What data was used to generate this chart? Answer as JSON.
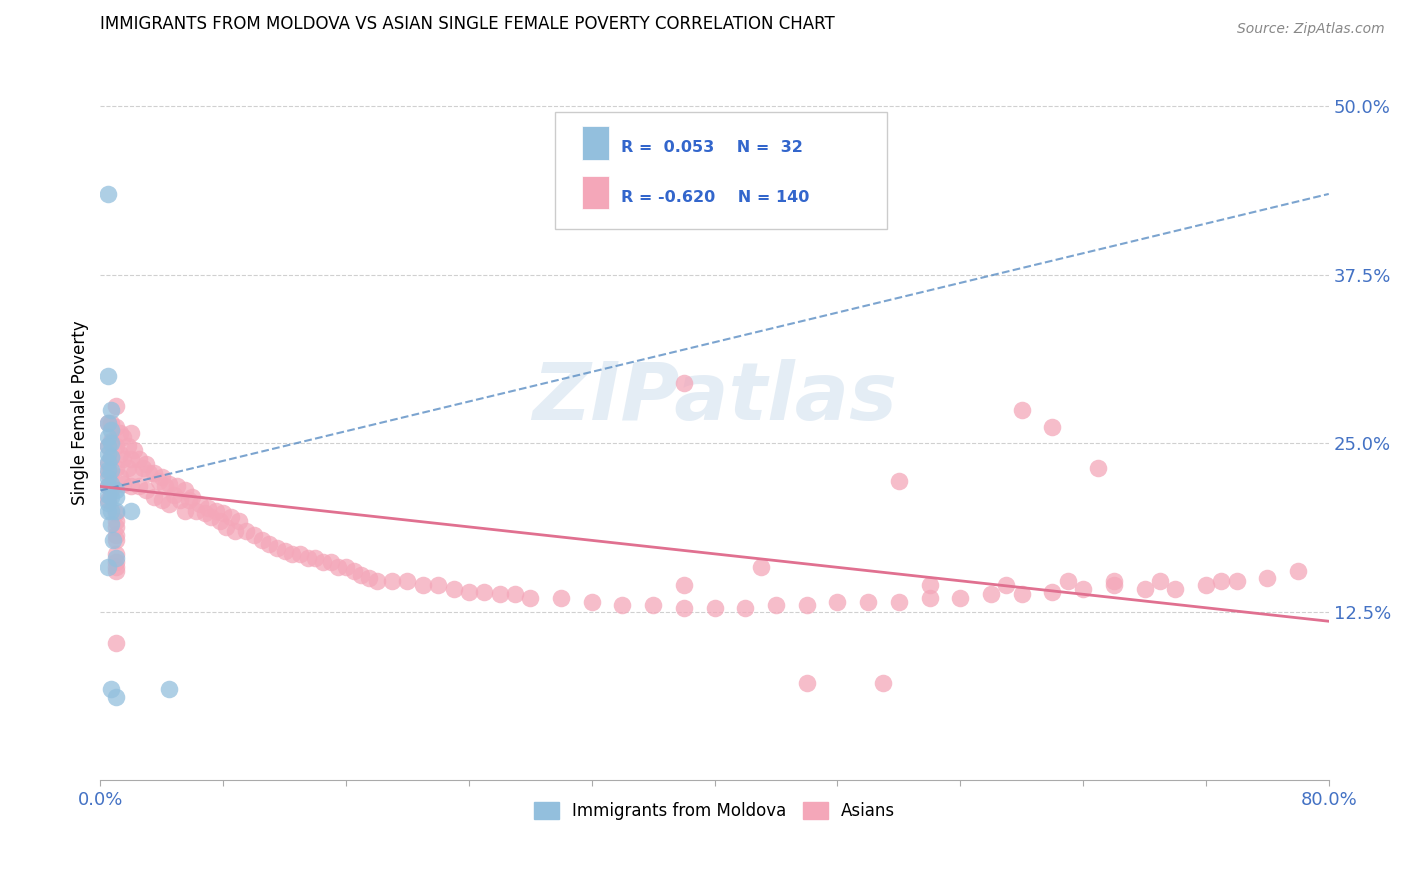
{
  "title": "IMMIGRANTS FROM MOLDOVA VS ASIAN SINGLE FEMALE POVERTY CORRELATION CHART",
  "source": "Source: ZipAtlas.com",
  "ylabel": "Single Female Poverty",
  "yticks": [
    "50.0%",
    "37.5%",
    "25.0%",
    "12.5%"
  ],
  "ytick_vals": [
    0.5,
    0.375,
    0.25,
    0.125
  ],
  "xlim": [
    0.0,
    0.8
  ],
  "ylim": [
    0.0,
    0.545
  ],
  "watermark": "ZIPatlas",
  "blue_color": "#93bfdd",
  "pink_color": "#f4a7b9",
  "blue_line_color": "#5b8ec4",
  "pink_line_color": "#e07090",
  "blue_scatter_x": [
    0.005,
    0.005,
    0.005,
    0.005,
    0.005,
    0.005,
    0.005,
    0.005,
    0.005,
    0.005,
    0.005,
    0.005,
    0.005,
    0.005,
    0.007,
    0.007,
    0.007,
    0.007,
    0.007,
    0.007,
    0.007,
    0.007,
    0.007,
    0.007,
    0.01,
    0.01,
    0.01,
    0.01,
    0.01,
    0.02,
    0.045,
    0.008
  ],
  "blue_scatter_y": [
    0.435,
    0.3,
    0.265,
    0.255,
    0.248,
    0.242,
    0.236,
    0.23,
    0.224,
    0.218,
    0.212,
    0.206,
    0.2,
    0.158,
    0.275,
    0.26,
    0.25,
    0.24,
    0.23,
    0.22,
    0.21,
    0.2,
    0.19,
    0.068,
    0.215,
    0.21,
    0.2,
    0.165,
    0.062,
    0.2,
    0.068,
    0.178
  ],
  "pink_scatter_x": [
    0.005,
    0.005,
    0.005,
    0.005,
    0.005,
    0.005,
    0.007,
    0.007,
    0.007,
    0.007,
    0.007,
    0.01,
    0.01,
    0.01,
    0.01,
    0.013,
    0.013,
    0.013,
    0.015,
    0.015,
    0.015,
    0.018,
    0.018,
    0.02,
    0.02,
    0.02,
    0.022,
    0.022,
    0.025,
    0.025,
    0.028,
    0.03,
    0.03,
    0.032,
    0.035,
    0.035,
    0.038,
    0.04,
    0.04,
    0.042,
    0.045,
    0.045,
    0.048,
    0.05,
    0.052,
    0.055,
    0.055,
    0.058,
    0.06,
    0.062,
    0.065,
    0.068,
    0.07,
    0.072,
    0.075,
    0.078,
    0.08,
    0.082,
    0.085,
    0.088,
    0.09,
    0.095,
    0.1,
    0.105,
    0.11,
    0.115,
    0.12,
    0.125,
    0.13,
    0.135,
    0.14,
    0.145,
    0.15,
    0.155,
    0.16,
    0.165,
    0.17,
    0.175,
    0.18,
    0.19,
    0.2,
    0.21,
    0.22,
    0.23,
    0.24,
    0.25,
    0.26,
    0.27,
    0.28,
    0.3,
    0.32,
    0.34,
    0.36,
    0.38,
    0.4,
    0.42,
    0.44,
    0.46,
    0.48,
    0.5,
    0.52,
    0.54,
    0.56,
    0.58,
    0.6,
    0.62,
    0.64,
    0.66,
    0.68,
    0.7,
    0.72,
    0.74,
    0.76,
    0.78,
    0.38,
    0.52,
    0.6,
    0.62,
    0.65,
    0.01,
    0.01,
    0.01,
    0.01,
    0.01,
    0.01,
    0.01,
    0.01,
    0.01,
    0.01,
    0.38,
    0.43,
    0.46,
    0.51,
    0.54,
    0.59,
    0.63,
    0.66,
    0.69,
    0.73
  ],
  "pink_scatter_y": [
    0.265,
    0.248,
    0.235,
    0.228,
    0.218,
    0.208,
    0.265,
    0.252,
    0.24,
    0.228,
    0.215,
    0.278,
    0.262,
    0.248,
    0.232,
    0.258,
    0.242,
    0.225,
    0.255,
    0.238,
    0.22,
    0.248,
    0.232,
    0.258,
    0.238,
    0.218,
    0.245,
    0.228,
    0.238,
    0.218,
    0.232,
    0.235,
    0.215,
    0.228,
    0.228,
    0.21,
    0.222,
    0.225,
    0.208,
    0.218,
    0.22,
    0.205,
    0.212,
    0.218,
    0.208,
    0.215,
    0.2,
    0.208,
    0.21,
    0.2,
    0.205,
    0.198,
    0.202,
    0.195,
    0.2,
    0.192,
    0.198,
    0.188,
    0.195,
    0.185,
    0.192,
    0.185,
    0.182,
    0.178,
    0.175,
    0.172,
    0.17,
    0.168,
    0.168,
    0.165,
    0.165,
    0.162,
    0.162,
    0.158,
    0.158,
    0.155,
    0.152,
    0.15,
    0.148,
    0.148,
    0.148,
    0.145,
    0.145,
    0.142,
    0.14,
    0.14,
    0.138,
    0.138,
    0.135,
    0.135,
    0.132,
    0.13,
    0.13,
    0.128,
    0.128,
    0.128,
    0.13,
    0.13,
    0.132,
    0.132,
    0.132,
    0.135,
    0.135,
    0.138,
    0.138,
    0.14,
    0.142,
    0.145,
    0.142,
    0.142,
    0.145,
    0.148,
    0.15,
    0.155,
    0.295,
    0.222,
    0.275,
    0.262,
    0.232,
    0.198,
    0.192,
    0.188,
    0.182,
    0.178,
    0.168,
    0.162,
    0.158,
    0.102,
    0.155,
    0.145,
    0.158,
    0.072,
    0.072,
    0.145,
    0.145,
    0.148,
    0.148,
    0.148,
    0.148
  ],
  "blue_trend_x": [
    0.0,
    0.8
  ],
  "blue_trend_y": [
    0.215,
    0.435
  ],
  "pink_trend_x": [
    0.0,
    0.8
  ],
  "pink_trend_y": [
    0.218,
    0.118
  ]
}
